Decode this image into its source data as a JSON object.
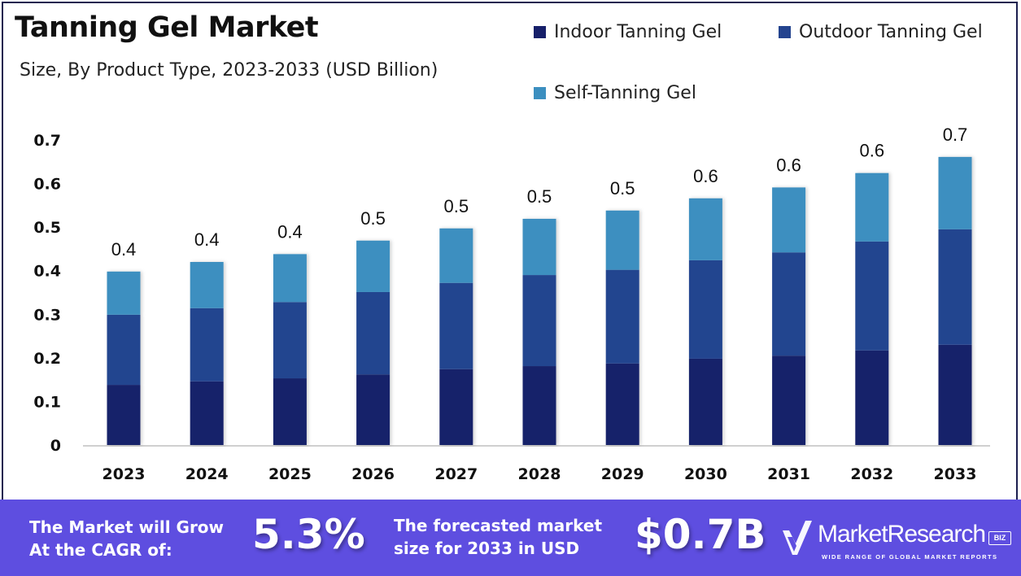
{
  "header": {
    "title": "Tanning Gel Market",
    "subtitle": "Size, By Product Type, 2023-2033 (USD Billion)"
  },
  "legend": [
    {
      "label": "Indoor Tanning Gel",
      "color": "#17206a"
    },
    {
      "label": "Outdoor Tanning Gel",
      "color": "#24448f"
    },
    {
      "label": "Self-Tanning Gel",
      "color": "#3c8fc0"
    }
  ],
  "chart_data": {
    "type": "bar",
    "stacked": true,
    "title": "Tanning Gel Market",
    "subtitle": "Size, By Product Type, 2023-2033 (USD Billion)",
    "xlabel": "",
    "ylabel": "",
    "ylim": [
      0,
      0.7
    ],
    "yticks": [
      "0",
      "0.1",
      "0.2",
      "0.3",
      "0.4",
      "0.5",
      "0.6",
      "0.7"
    ],
    "grid": false,
    "legend_position": "top-right",
    "categories": [
      "2023",
      "2024",
      "2025",
      "2026",
      "2027",
      "2028",
      "2029",
      "2030",
      "2031",
      "2032",
      "2033"
    ],
    "series": [
      {
        "name": "Indoor Tanning Gel",
        "color": "#17206a",
        "values": [
          0.138,
          0.146,
          0.153,
          0.162,
          0.174,
          0.181,
          0.187,
          0.198,
          0.205,
          0.217,
          0.23
        ]
      },
      {
        "name": "Outdoor Tanning Gel",
        "color": "#24448f",
        "values": [
          0.161,
          0.168,
          0.175,
          0.189,
          0.198,
          0.209,
          0.215,
          0.226,
          0.237,
          0.25,
          0.265
        ]
      },
      {
        "name": "Self-Tanning Gel",
        "color": "#3c8fc0",
        "values": [
          0.099,
          0.106,
          0.11,
          0.118,
          0.125,
          0.129,
          0.136,
          0.142,
          0.149,
          0.157,
          0.166
        ]
      }
    ],
    "total_labels": [
      "0.4",
      "0.4",
      "0.4",
      "0.5",
      "0.5",
      "0.5",
      "0.5",
      "0.6",
      "0.6",
      "0.6",
      "0.7"
    ]
  },
  "footer": {
    "cagr_text_line1": "The Market will Grow",
    "cagr_text_line2": "At the CAGR of:",
    "cagr_value": "5.3%",
    "forecast_text_line1": "The forecasted market",
    "forecast_text_line2": "size for 2033 in USD",
    "forecast_value": "$0.7B",
    "band_color": "#5e4ee0"
  },
  "logo": {
    "name": "MarketResearch",
    "badge": "BIZ",
    "tagline": "WIDE RANGE OF GLOBAL MARKET REPORTS"
  }
}
